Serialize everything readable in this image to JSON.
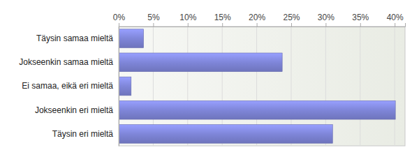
{
  "chart_data": {
    "type": "bar",
    "orientation": "horizontal",
    "categories": [
      "Täysin samaa mieltä",
      "Jokseenkin samaa mieltä",
      "Ei samaa, eikä eri mieltä",
      "Jokseenkin eri mieltä",
      "Täysin eri mieltä"
    ],
    "values": [
      3.6,
      23.7,
      1.8,
      40.1,
      31.0
    ],
    "color": "#7f86d9",
    "xlim": [
      0,
      41.5
    ],
    "xticks": [
      {
        "value": 0,
        "label": "0%"
      },
      {
        "value": 5,
        "label": "5%"
      },
      {
        "value": 10,
        "label": "10%"
      },
      {
        "value": 15,
        "label": "15%"
      },
      {
        "value": 20,
        "label": "20%"
      },
      {
        "value": 25,
        "label": "25%"
      },
      {
        "value": 30,
        "label": "30%"
      },
      {
        "value": 35,
        "label": "35%"
      },
      {
        "value": 40,
        "label": "40%"
      }
    ],
    "grid": true
  }
}
